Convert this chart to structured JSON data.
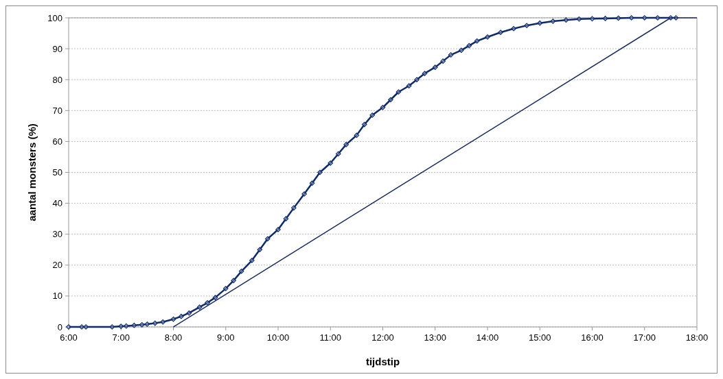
{
  "chart_data": {
    "type": "line",
    "xlabel": "tijdstip",
    "ylabel": "aantal monsters  (%)",
    "xlim": [
      6,
      18
    ],
    "xticks": [
      {
        "value": 6,
        "label": "6:00"
      },
      {
        "value": 7,
        "label": "7:00"
      },
      {
        "value": 8,
        "label": "8:00"
      },
      {
        "value": 9,
        "label": "9:00"
      },
      {
        "value": 10,
        "label": "10:00"
      },
      {
        "value": 11,
        "label": "11:00"
      },
      {
        "value": 12,
        "label": "12:00"
      },
      {
        "value": 13,
        "label": "13:00"
      },
      {
        "value": 14,
        "label": "14:00"
      },
      {
        "value": 15,
        "label": "15:00"
      },
      {
        "value": 16,
        "label": "16:00"
      },
      {
        "value": 17,
        "label": "17:00"
      },
      {
        "value": 18,
        "label": "18:00"
      }
    ],
    "ylim": [
      0,
      100
    ],
    "yticks": [
      0,
      10,
      20,
      30,
      40,
      50,
      60,
      70,
      80,
      90,
      100
    ],
    "grid": "y",
    "series": [
      {
        "color": "#0d2a6b",
        "marker": "diamond",
        "x": [
          6,
          6.25,
          6.33,
          6.83,
          7,
          7.1,
          7.25,
          7.4,
          7.5,
          7.65,
          7.8,
          8,
          8.15,
          8.3,
          8.5,
          8.65,
          8.8,
          9,
          9.15,
          9.3,
          9.5,
          9.65,
          9.8,
          10,
          10.15,
          10.3,
          10.5,
          10.65,
          10.8,
          11,
          11.15,
          11.3,
          11.5,
          11.65,
          11.8,
          12,
          12.15,
          12.3,
          12.5,
          12.65,
          12.8,
          13,
          13.15,
          13.3,
          13.5,
          13.65,
          13.8,
          14,
          14.25,
          14.5,
          14.75,
          15,
          15.25,
          15.5,
          15.75,
          16,
          16.25,
          16.5,
          16.75,
          17,
          17.25,
          17.5,
          17.6
        ],
        "values": [
          0,
          0,
          0,
          0,
          0.2,
          0.3,
          0.5,
          0.7,
          0.9,
          1.2,
          1.6,
          2.5,
          3.4,
          4.5,
          6.4,
          7.8,
          9.5,
          12.4,
          15,
          18,
          21.5,
          25,
          28.5,
          31.5,
          35,
          38.5,
          43,
          46.5,
          50,
          53,
          56,
          59,
          62,
          65.5,
          68.5,
          71,
          73.5,
          76,
          78,
          80,
          82,
          84,
          86,
          88,
          89.5,
          91,
          92.5,
          93.8,
          95.3,
          96.5,
          97.5,
          98.3,
          98.9,
          99.3,
          99.6,
          99.7,
          99.8,
          99.9,
          100,
          100,
          100,
          100,
          100
        ]
      },
      {
        "color": "#1b2d63",
        "marker": "none",
        "x": [
          8,
          17.5,
          18
        ],
        "values": [
          0,
          100,
          100
        ]
      }
    ]
  }
}
